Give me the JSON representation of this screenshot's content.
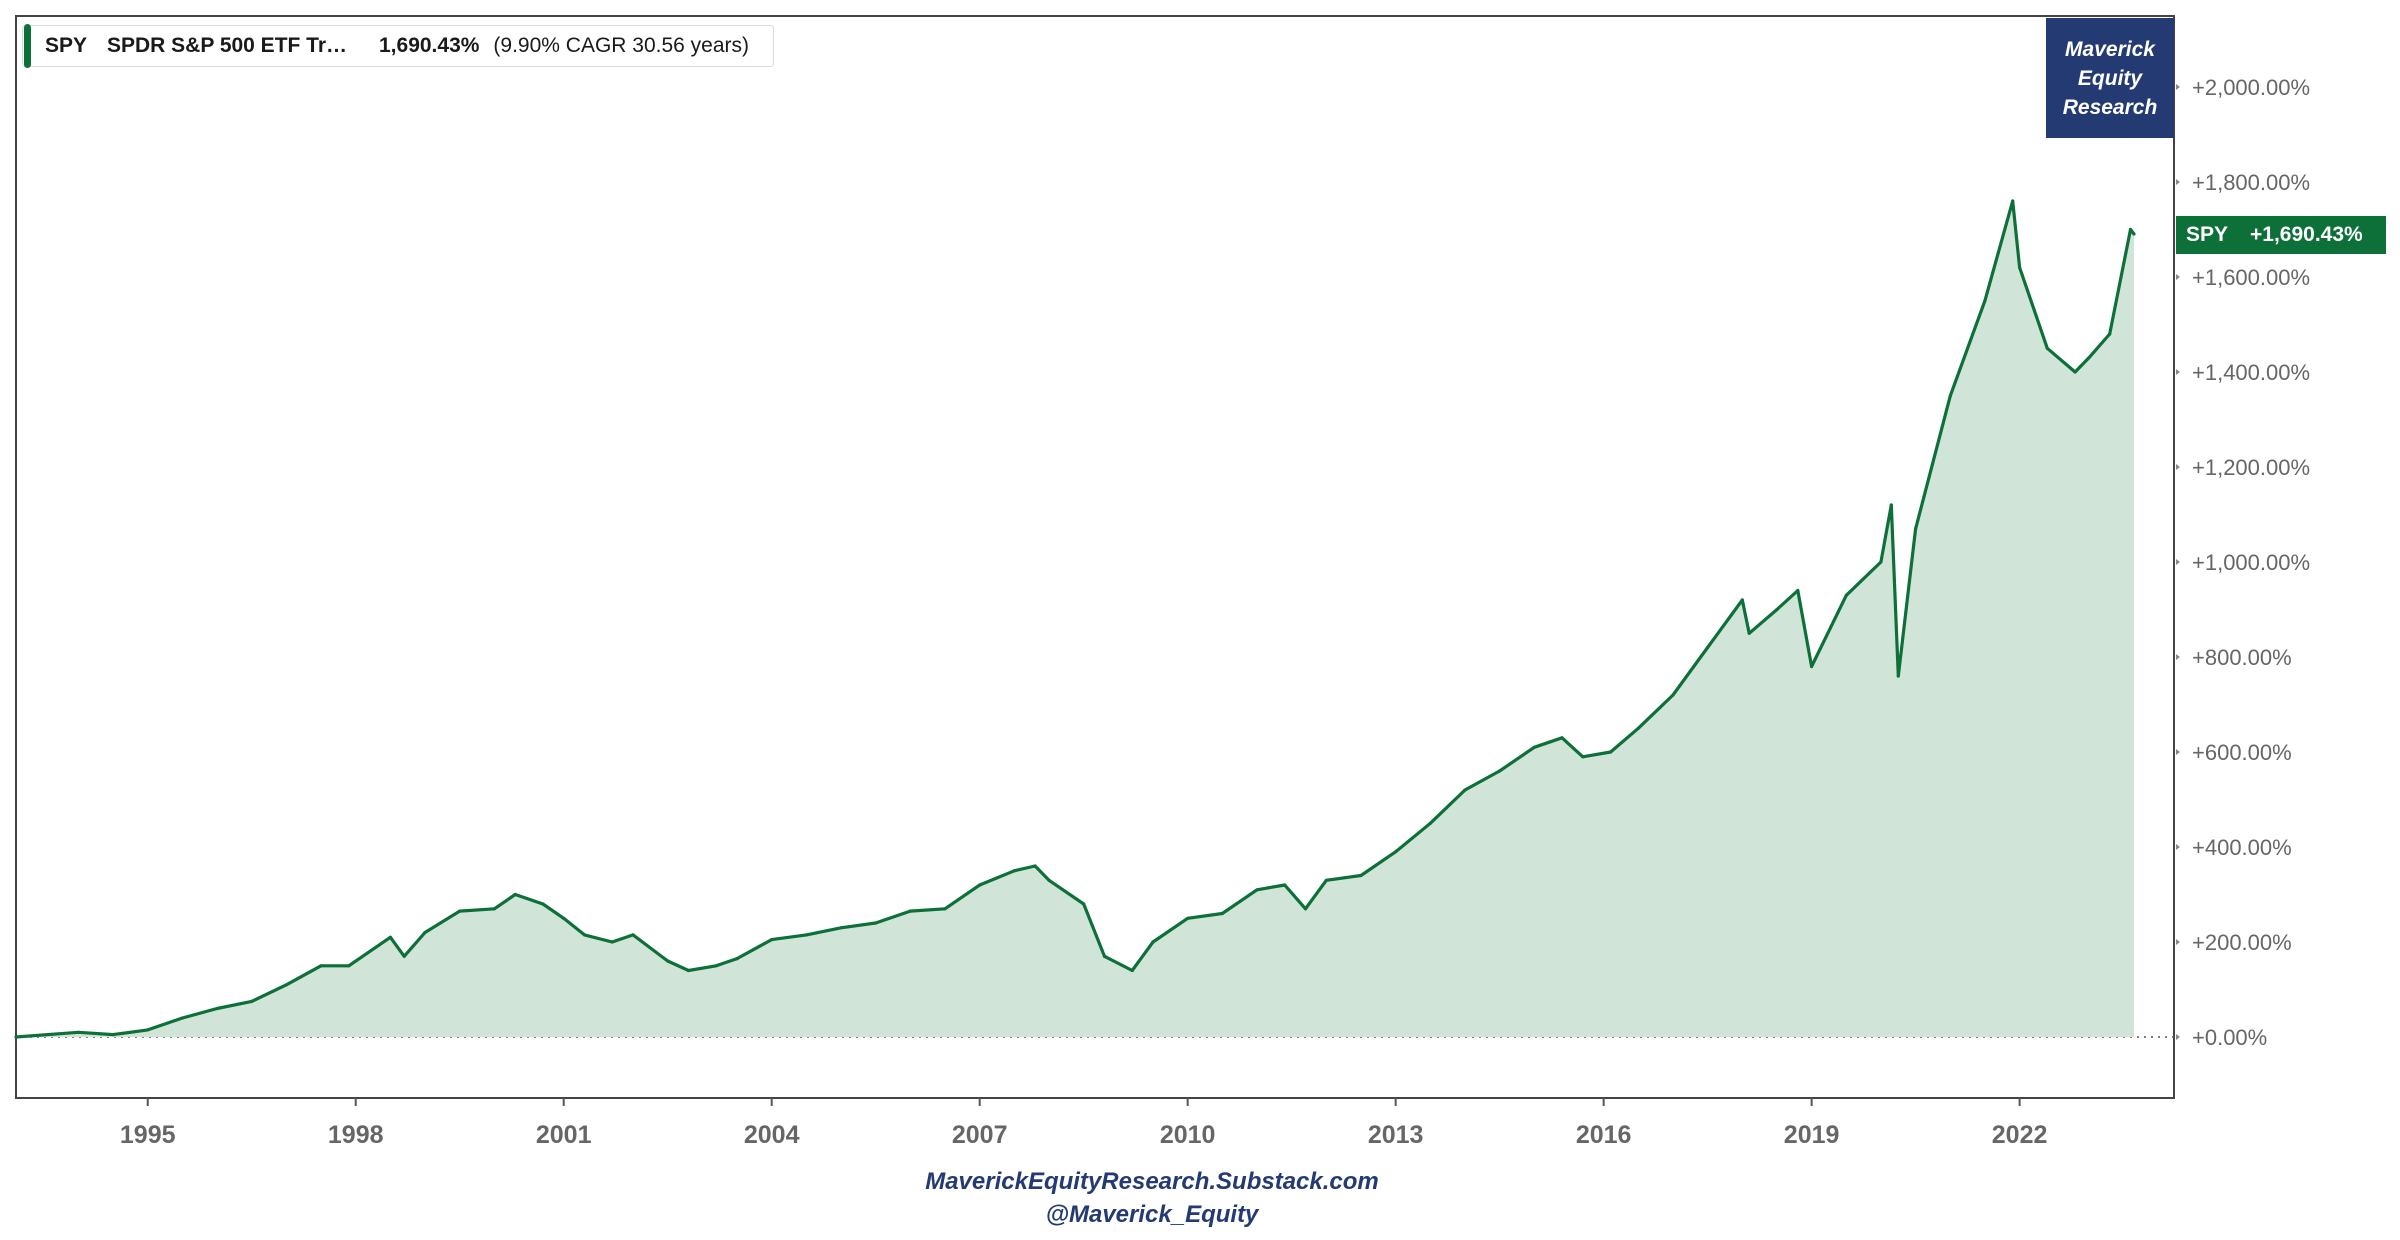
{
  "legend": {
    "ticker": "SPY",
    "name": "SPDR S&P 500 ETF Tr…",
    "total_return": "1,690.43%",
    "cagr_note": "(9.90% CAGR 30.56 years)"
  },
  "brand": {
    "text": "Maverick\nEquity\nResearch"
  },
  "last_value_tag": {
    "ticker": "SPY",
    "value": "+1,690.43%"
  },
  "footer": {
    "line1": "MaverickEquityResearch.Substack.com",
    "line2": "@Maverick_Equity"
  },
  "colors": {
    "line": "#0d7038",
    "fill": "#d0e5d8",
    "brand": "#243a73",
    "axis_text": "#666666"
  },
  "chart_data": {
    "type": "area",
    "series": [
      {
        "name": "SPY",
        "x": [
          1993.1,
          1994.0,
          1994.5,
          1995.0,
          1995.5,
          1996.0,
          1996.5,
          1997.0,
          1997.5,
          1997.9,
          1998.5,
          1998.7,
          1999.0,
          1999.5,
          2000.0,
          2000.3,
          2000.7,
          2001.0,
          2001.3,
          2001.7,
          2002.0,
          2002.5,
          2002.8,
          2003.2,
          2003.5,
          2004.0,
          2004.5,
          2005.0,
          2005.5,
          2006.0,
          2006.5,
          2007.0,
          2007.5,
          2007.8,
          2008.0,
          2008.5,
          2008.8,
          2009.2,
          2009.5,
          2010.0,
          2010.5,
          2011.0,
          2011.4,
          2011.7,
          2012.0,
          2012.5,
          2013.0,
          2013.5,
          2014.0,
          2014.5,
          2015.0,
          2015.4,
          2015.7,
          2016.1,
          2016.5,
          2017.0,
          2017.5,
          2018.0,
          2018.1,
          2018.5,
          2018.8,
          2019.0,
          2019.5,
          2020.0,
          2020.15,
          2020.25,
          2020.5,
          2021.0,
          2021.5,
          2021.9,
          2022.0,
          2022.4,
          2022.8,
          2023.0,
          2023.3,
          2023.6,
          2023.65
        ],
        "values": [
          0,
          10,
          5,
          15,
          40,
          60,
          75,
          110,
          150,
          150,
          210,
          170,
          220,
          265,
          270,
          300,
          280,
          250,
          215,
          200,
          215,
          160,
          140,
          150,
          165,
          205,
          215,
          230,
          240,
          265,
          270,
          320,
          350,
          360,
          330,
          280,
          170,
          140,
          200,
          250,
          260,
          310,
          320,
          270,
          330,
          340,
          390,
          450,
          520,
          560,
          610,
          630,
          590,
          600,
          650,
          720,
          820,
          920,
          850,
          900,
          940,
          780,
          930,
          1000,
          1120,
          760,
          1070,
          1350,
          1550,
          1760,
          1620,
          1450,
          1400,
          1430,
          1480,
          1700,
          1690.43
        ]
      }
    ],
    "xlim": [
      1993.1,
      2023.65
    ],
    "x_ticks": [
      "1995",
      "1998",
      "2001",
      "2004",
      "2007",
      "2010",
      "2013",
      "2016",
      "2019",
      "2022"
    ],
    "x_tick_values": [
      1995,
      1998,
      2001,
      2004,
      2007,
      2010,
      2013,
      2016,
      2019,
      2022
    ],
    "ylim": [
      -130,
      2130
    ],
    "y_ticks": [
      "+0.00%",
      "+200.00%",
      "+400.00%",
      "+600.00%",
      "+800.00%",
      "+1,000.00%",
      "+1,200.00%",
      "+1,400.00%",
      "+1,600.00%",
      "+1,800.00%",
      "+2,000.00%"
    ],
    "y_tick_values": [
      0,
      200,
      400,
      600,
      800,
      1000,
      1200,
      1400,
      1600,
      1800,
      2000
    ],
    "grid": false,
    "zero_line": "dotted",
    "xlabel": "",
    "ylabel": ""
  }
}
